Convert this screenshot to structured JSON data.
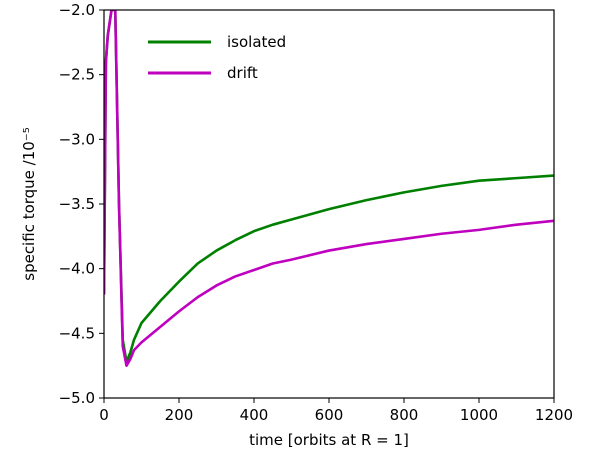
{
  "chart_data": {
    "type": "line",
    "xlabel": "time [orbits at R = 1]",
    "ylabel": "specific torque /10⁻⁵",
    "xlim": [
      0,
      1200
    ],
    "ylim": [
      -5.0,
      -2.0
    ],
    "xticks": [
      0,
      200,
      400,
      600,
      800,
      1000,
      1200
    ],
    "yticks": [
      -5.0,
      -4.5,
      -4.0,
      -3.5,
      -3.0,
      -2.5,
      -2.0
    ],
    "xtick_labels": [
      "0",
      "200",
      "400",
      "600",
      "800",
      "1000",
      "1200"
    ],
    "ytick_labels": [
      "−5.0",
      "−4.5",
      "−4.0",
      "−3.5",
      "−3.0",
      "−2.5",
      "−2.0"
    ],
    "grid": false,
    "legend_position": "top-left",
    "series": [
      {
        "name": "isolated",
        "color": "#008000",
        "x": [
          0,
          5,
          10,
          20,
          30,
          40,
          50,
          60,
          70,
          80,
          100,
          150,
          200,
          250,
          300,
          350,
          400,
          450,
          500,
          600,
          700,
          800,
          900,
          1000,
          1100,
          1200
        ],
        "y": [
          -4.2,
          -2.4,
          -2.2,
          -2.0,
          -2.0,
          -3.5,
          -4.55,
          -4.72,
          -4.65,
          -4.55,
          -4.42,
          -4.25,
          -4.1,
          -3.96,
          -3.86,
          -3.78,
          -3.71,
          -3.66,
          -3.62,
          -3.54,
          -3.47,
          -3.41,
          -3.36,
          -3.32,
          -3.3,
          -3.28
        ]
      },
      {
        "name": "drift",
        "color": "#bf00bf",
        "x": [
          0,
          5,
          10,
          20,
          30,
          40,
          50,
          60,
          70,
          80,
          100,
          150,
          200,
          250,
          300,
          350,
          400,
          450,
          500,
          600,
          700,
          800,
          900,
          1000,
          1100,
          1200
        ],
        "y": [
          -4.2,
          -2.4,
          -2.2,
          -2.0,
          -2.0,
          -3.5,
          -4.6,
          -4.75,
          -4.7,
          -4.63,
          -4.57,
          -4.45,
          -4.33,
          -4.22,
          -4.13,
          -4.06,
          -4.01,
          -3.96,
          -3.93,
          -3.86,
          -3.81,
          -3.77,
          -3.73,
          -3.7,
          -3.66,
          -3.63
        ]
      }
    ]
  }
}
